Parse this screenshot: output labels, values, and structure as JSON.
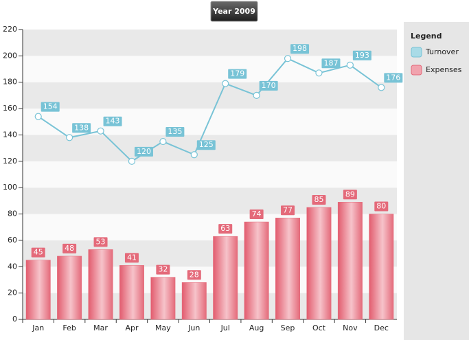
{
  "chart_data": {
    "type": "combo",
    "title": "Year 2009",
    "legend_title": "Legend",
    "categories": [
      "Jan",
      "Feb",
      "Mar",
      "Apr",
      "May",
      "Jun",
      "Jul",
      "Aug",
      "Sep",
      "Oct",
      "Nov",
      "Dec"
    ],
    "series": [
      {
        "name": "Turnover",
        "type": "line",
        "color": "#78c3d6",
        "values": [
          154,
          138,
          143,
          120,
          135,
          125,
          179,
          170,
          198,
          187,
          193,
          176
        ]
      },
      {
        "name": "Expenses",
        "type": "bar",
        "color": "#e46a7a",
        "values": [
          45,
          48,
          53,
          41,
          32,
          28,
          63,
          74,
          77,
          85,
          89,
          80
        ]
      }
    ],
    "ylim": [
      0,
      220
    ],
    "yticks": [
      0,
      20,
      40,
      60,
      80,
      100,
      120,
      140,
      160,
      180,
      200,
      220
    ],
    "grid": "bands"
  }
}
